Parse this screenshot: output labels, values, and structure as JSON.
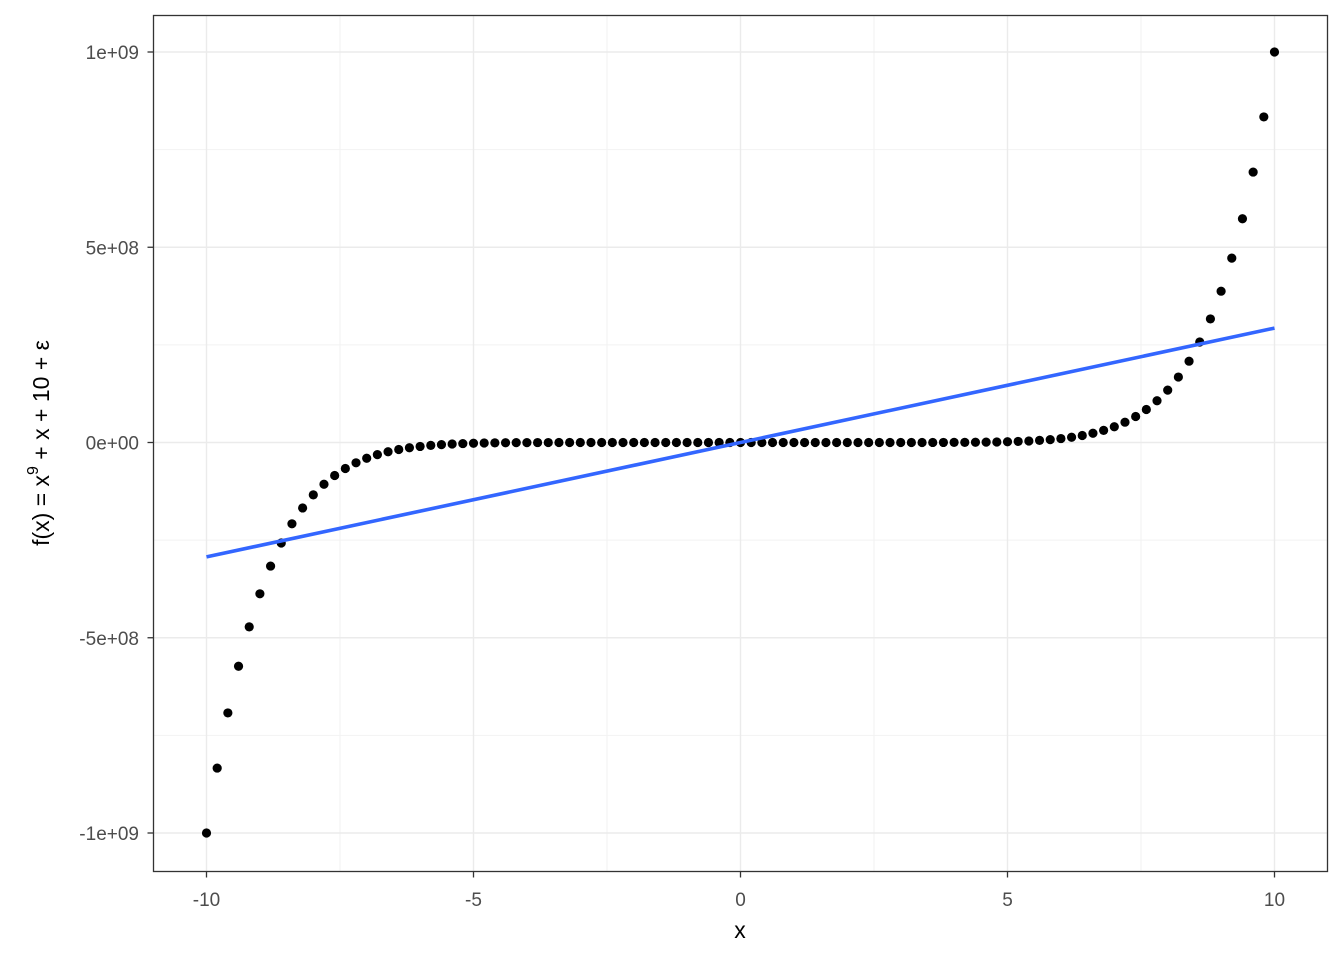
{
  "chart_data": {
    "type": "scatter",
    "title": "",
    "xlabel": "x",
    "ylabel": {
      "prefix": "f(x) = x",
      "superscript": "9",
      "suffix": " + x + 10 + ε"
    },
    "xlim": [
      -10,
      10
    ],
    "ylim": [
      -1000000000,
      1000000000
    ],
    "x_ticks": [
      -10,
      -5,
      0,
      5,
      10
    ],
    "x_tick_labels": [
      "-10",
      "-5",
      "0",
      "5",
      "10"
    ],
    "y_ticks": [
      -1000000000,
      -500000000,
      0,
      500000000,
      1000000000
    ],
    "y_tick_labels": [
      "-1e+09",
      "-5e+08",
      "0e+00",
      "5e+08",
      "1e+09"
    ],
    "grid": true,
    "series": [
      {
        "kind": "points",
        "x_start": -10,
        "x_end": 10,
        "x_step": 0.2,
        "function": "x^9 + x + 10",
        "color": "#000000"
      },
      {
        "kind": "fitted-line",
        "x": [
          -10,
          10
        ],
        "y": [
          -293000000,
          293000000
        ],
        "color": "#3366FF"
      }
    ]
  }
}
